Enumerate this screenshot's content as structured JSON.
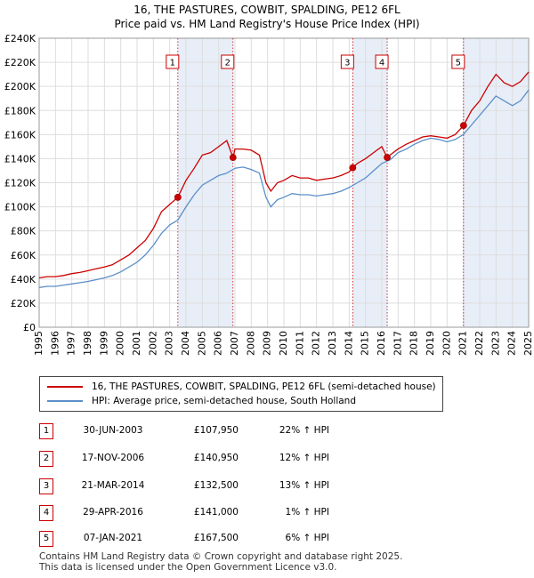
{
  "title": "16, THE PASTURES, COWBIT, SPALDING, PE12 6FL",
  "subtitle": "Price paid vs. HM Land Registry's House Price Index (HPI)",
  "colors": {
    "property": "#cc0000",
    "hpi": "#5b8fc9",
    "grid": "#dddddd",
    "band": "#e8eef8"
  },
  "chart_data": {
    "type": "line",
    "xlim": [
      1995,
      2025
    ],
    "ylim": [
      0,
      240000
    ],
    "yticks": [
      0,
      20000,
      40000,
      60000,
      80000,
      100000,
      120000,
      140000,
      160000,
      180000,
      200000,
      220000,
      240000
    ],
    "ytick_labels": [
      "£0",
      "£20K",
      "£40K",
      "£60K",
      "£80K",
      "£100K",
      "£120K",
      "£140K",
      "£160K",
      "£180K",
      "£200K",
      "£220K",
      "£240K"
    ],
    "xticks": [
      1995,
      1996,
      1997,
      1998,
      1999,
      2000,
      2001,
      2002,
      2003,
      2004,
      2005,
      2006,
      2007,
      2008,
      2009,
      2010,
      2011,
      2012,
      2013,
      2014,
      2015,
      2016,
      2017,
      2018,
      2019,
      2020,
      2021,
      2022,
      2023,
      2024,
      2025
    ],
    "xtick_labels": [
      "1995",
      "1996",
      "1997",
      "1998",
      "1999",
      "2000",
      "2001",
      "2002",
      "2003",
      "2004",
      "2005",
      "2006",
      "2007",
      "2008",
      "2009",
      "2010",
      "2011",
      "2012",
      "2013",
      "2014",
      "2015",
      "2016",
      "2017",
      "2018",
      "2019",
      "2020",
      "2021",
      "2022",
      "2023",
      "2024",
      "2025"
    ],
    "grid": true,
    "series": [
      {
        "name": "16, THE PASTURES, COWBIT, SPALDING, PE12 6FL (semi-detached house)",
        "x": [
          1995.0,
          1995.5,
          1996.0,
          1996.5,
          1997.0,
          1997.5,
          1998.0,
          1998.5,
          1999.0,
          1999.5,
          2000.0,
          2000.5,
          2001.0,
          2001.5,
          2002.0,
          2002.5,
          2003.0,
          2003.5,
          2004.0,
          2004.5,
          2005.0,
          2005.5,
          2006.0,
          2006.5,
          2006.88,
          2007.0,
          2007.5,
          2008.0,
          2008.5,
          2008.9,
          2009.2,
          2009.6,
          2010.0,
          2010.5,
          2011.0,
          2011.5,
          2012.0,
          2012.5,
          2013.0,
          2013.5,
          2014.0,
          2014.22,
          2014.5,
          2015.0,
          2015.5,
          2016.0,
          2016.33,
          2016.5,
          2017.0,
          2017.5,
          2018.0,
          2018.5,
          2019.0,
          2019.5,
          2020.0,
          2020.5,
          2021.01,
          2021.5,
          2022.0,
          2022.5,
          2023.0,
          2023.5,
          2024.0,
          2024.5,
          2025.0
        ],
        "y": [
          41000,
          42000,
          42000,
          43000,
          44500,
          45500,
          47000,
          48500,
          50000,
          52000,
          56000,
          60000,
          66000,
          72000,
          82000,
          96000,
          102000,
          107950,
          122000,
          132000,
          143000,
          145000,
          150000,
          155000,
          140950,
          148000,
          148000,
          147000,
          143000,
          120000,
          113000,
          120000,
          122000,
          126000,
          124000,
          124000,
          122000,
          123000,
          124000,
          126000,
          129000,
          132500,
          136000,
          140000,
          145000,
          150000,
          141000,
          143000,
          148000,
          152000,
          155000,
          158000,
          159000,
          158000,
          157000,
          160000,
          167500,
          180000,
          188000,
          200000,
          210000,
          203000,
          200000,
          204000,
          212000
        ]
      },
      {
        "name": "HPI: Average price, semi-detached house, South Holland",
        "x": [
          1995.0,
          1995.5,
          1996.0,
          1996.5,
          1997.0,
          1997.5,
          1998.0,
          1998.5,
          1999.0,
          1999.5,
          2000.0,
          2000.5,
          2001.0,
          2001.5,
          2002.0,
          2002.5,
          2003.0,
          2003.5,
          2004.0,
          2004.5,
          2005.0,
          2005.5,
          2006.0,
          2006.5,
          2007.0,
          2007.5,
          2008.0,
          2008.5,
          2008.9,
          2009.2,
          2009.6,
          2010.0,
          2010.5,
          2011.0,
          2011.5,
          2012.0,
          2012.5,
          2013.0,
          2013.5,
          2014.0,
          2014.5,
          2015.0,
          2015.5,
          2016.0,
          2016.5,
          2017.0,
          2017.5,
          2018.0,
          2018.5,
          2019.0,
          2019.5,
          2020.0,
          2020.5,
          2021.0,
          2021.5,
          2022.0,
          2022.5,
          2023.0,
          2023.5,
          2024.0,
          2024.5,
          2025.0
        ],
        "y": [
          33000,
          34000,
          34000,
          35000,
          36000,
          37000,
          38000,
          39500,
          41000,
          43000,
          46000,
          50000,
          54000,
          60000,
          68000,
          78000,
          85000,
          89000,
          100000,
          110000,
          118000,
          122000,
          126000,
          128000,
          132000,
          133000,
          131000,
          128000,
          108000,
          100000,
          106000,
          108000,
          111000,
          110000,
          110000,
          109000,
          110000,
          111000,
          113000,
          116000,
          120000,
          124000,
          130000,
          136000,
          139000,
          145000,
          148000,
          152000,
          155000,
          157000,
          156000,
          154000,
          156000,
          160000,
          168000,
          176000,
          184000,
          192000,
          188000,
          184000,
          188000,
          197000
        ]
      }
    ],
    "sales": [
      {
        "label": "1",
        "x": 2003.5,
        "price": 107950
      },
      {
        "label": "2",
        "x": 2006.88,
        "price": 140950
      },
      {
        "label": "3",
        "x": 2014.22,
        "price": 132500
      },
      {
        "label": "4",
        "x": 2016.33,
        "price": 141000
      },
      {
        "label": "5",
        "x": 2021.01,
        "price": 167500
      }
    ]
  },
  "legend": {
    "property": "16, THE PASTURES, COWBIT, SPALDING, PE12 6FL (semi-detached house)",
    "hpi": "HPI: Average price, semi-detached house, South Holland"
  },
  "sales_table": [
    {
      "num": "1",
      "date": "30-JUN-2003",
      "price": "£107,950",
      "hpi": "22% ↑ HPI"
    },
    {
      "num": "2",
      "date": "17-NOV-2006",
      "price": "£140,950",
      "hpi": "12% ↑ HPI"
    },
    {
      "num": "3",
      "date": "21-MAR-2014",
      "price": "£132,500",
      "hpi": "13% ↑ HPI"
    },
    {
      "num": "4",
      "date": "29-APR-2016",
      "price": "£141,000",
      "hpi": "1% ↑ HPI"
    },
    {
      "num": "5",
      "date": "07-JAN-2021",
      "price": "£167,500",
      "hpi": "6% ↑ HPI"
    }
  ],
  "footer": {
    "line1": "Contains HM Land Registry data © Crown copyright and database right 2025.",
    "line2": "This data is licensed under the Open Government Licence v3.0."
  }
}
